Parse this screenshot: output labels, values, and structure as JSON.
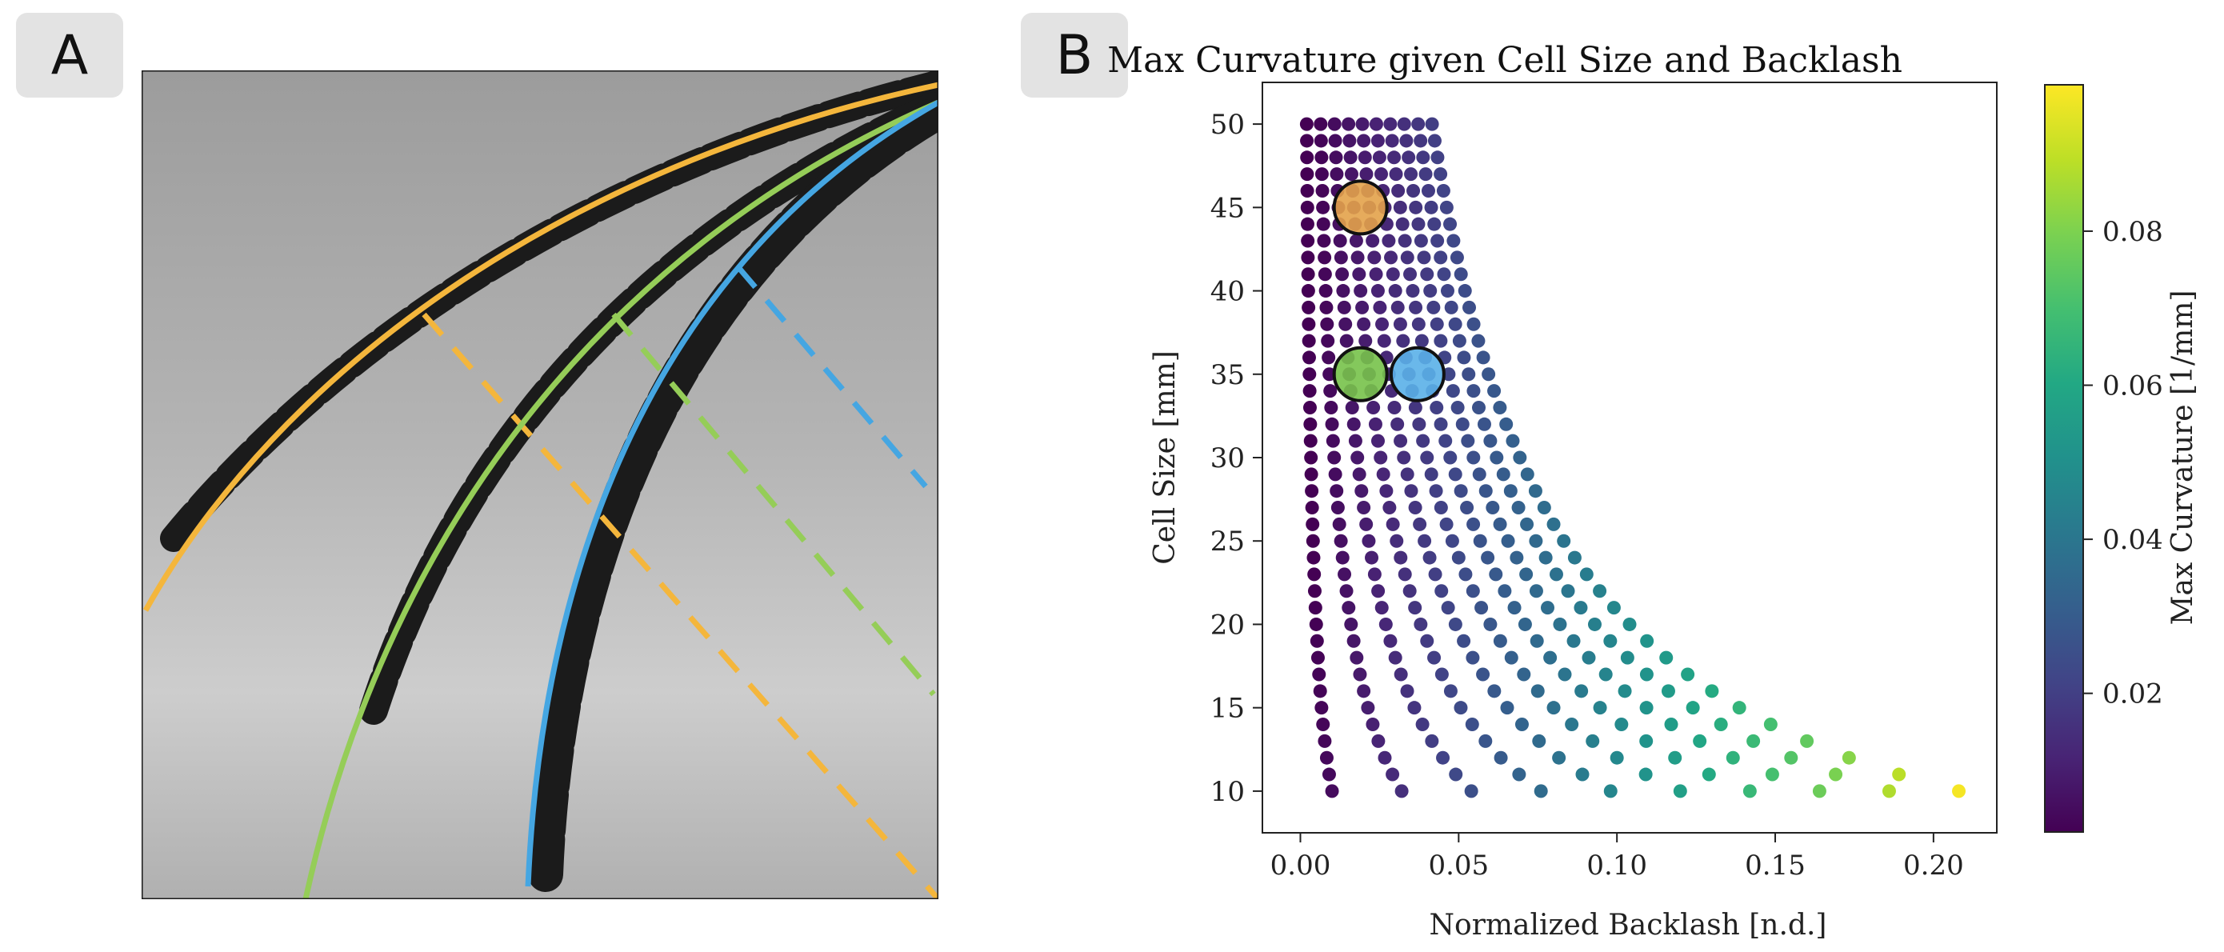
{
  "panels": {
    "a_label": "A",
    "b_label": "B"
  },
  "photo": {
    "description_icon": "segmented-arm-photo-icon",
    "background_color": "#b9b9b9",
    "arm_color": "#1a1a1a",
    "curve_colors": {
      "orange": "#f4b63c",
      "green": "#95cd58",
      "blue": "#45a6e2"
    }
  },
  "chart_data": {
    "type": "scatter",
    "title": "Max Curvature given Cell Size and Backlash",
    "xlabel": "Normalized Backlash [n.d.]",
    "ylabel": "Cell Size [mm]",
    "xlim": [
      -0.012,
      0.22
    ],
    "ylim": [
      7.5,
      52.5
    ],
    "xticks": [
      0.0,
      0.05,
      0.1,
      0.15,
      0.2
    ],
    "xtick_labels": [
      "0.00",
      "0.05",
      "0.10",
      "0.15",
      "0.20"
    ],
    "yticks": [
      10,
      15,
      20,
      25,
      30,
      35,
      40,
      45,
      50
    ],
    "ytick_labels": [
      "10",
      "15",
      "20",
      "25",
      "30",
      "35",
      "40",
      "45",
      "50"
    ],
    "grid": false,
    "series_rule": "backlash = k / cell_size, for cell sizes 10 to 50 mm in steps of 1",
    "series": [
      {
        "k": 0.1
      },
      {
        "k": 0.32
      },
      {
        "k": 0.54
      },
      {
        "k": 0.76
      },
      {
        "k": 0.98
      },
      {
        "k": 1.2
      },
      {
        "k": 1.42
      },
      {
        "k": 1.64
      },
      {
        "k": 1.86
      },
      {
        "k": 2.08
      }
    ],
    "cell_size_range": [
      10,
      50
    ],
    "highlighted_points": [
      {
        "x": 0.019,
        "y": 45,
        "color": "#e3a24a"
      },
      {
        "x": 0.019,
        "y": 35,
        "color": "#77c24a"
      },
      {
        "x": 0.037,
        "y": 35,
        "color": "#5ab0e8"
      }
    ],
    "colorbar": {
      "label": "Max Curvature [1/mm]",
      "range": [
        0.002,
        0.099
      ],
      "ticks": [
        0.02,
        0.04,
        0.06,
        0.08
      ],
      "tick_labels": [
        "0.02",
        "0.04",
        "0.06",
        "0.08"
      ],
      "colormap": "viridis"
    }
  }
}
